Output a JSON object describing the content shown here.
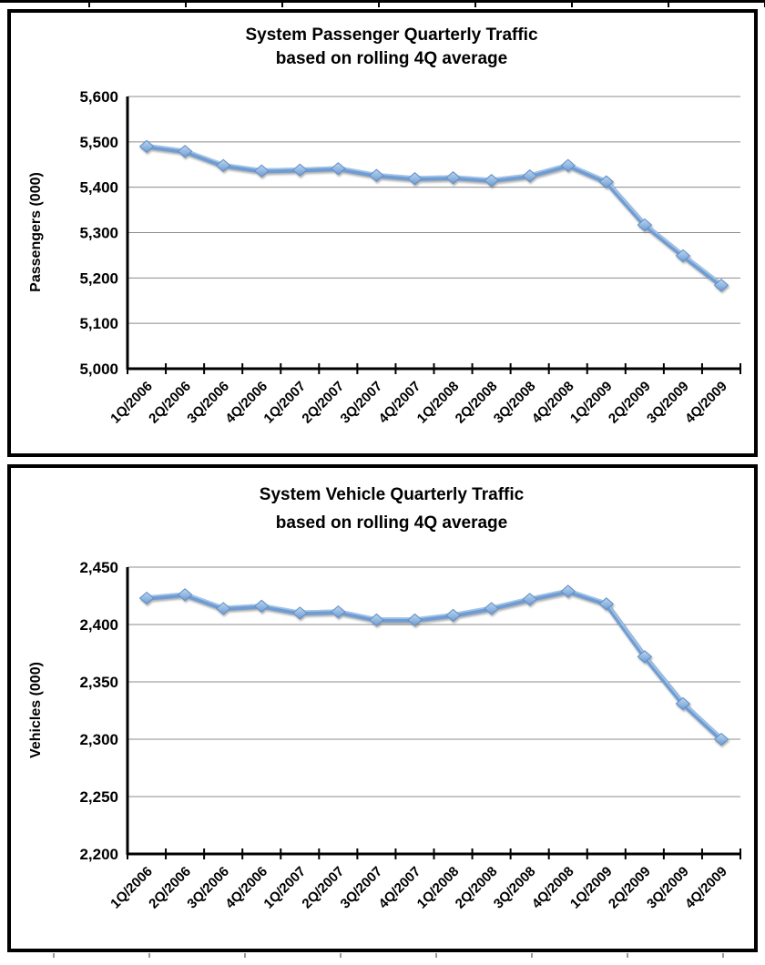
{
  "page": {
    "background": "#ffffff",
    "panel_border_color": "#000000"
  },
  "chart_data": [
    {
      "type": "line",
      "title": "System Passenger Quarterly Traffic",
      "subtitle": "based on rolling 4Q average",
      "ylabel": "Passengers (000)",
      "xlabel": "",
      "categories": [
        "1Q/2006",
        "2Q/2006",
        "3Q/2006",
        "4Q/2006",
        "1Q/2007",
        "2Q/2007",
        "3Q/2007",
        "4Q/2007",
        "1Q/2008",
        "2Q/2008",
        "3Q/2008",
        "4Q/2008",
        "1Q/2009",
        "2Q/2009",
        "3Q/2009",
        "4Q/2009"
      ],
      "series": [
        {
          "name": "Passengers",
          "values": [
            5490,
            5479,
            5448,
            5436,
            5438,
            5441,
            5426,
            5419,
            5421,
            5415,
            5425,
            5448,
            5412,
            5317,
            5249,
            5184
          ]
        }
      ],
      "ylim": [
        5000,
        5600
      ],
      "ytick_step": 100,
      "grid": true,
      "legend": "none",
      "line_color": "#6f9dd3",
      "line_highlight_color": "#a9c9ea",
      "marker": "diamond",
      "marker_fill_top": "#bcd6f2",
      "marker_fill_bottom": "#6e9cd2",
      "marker_stroke": "#5f8ec6",
      "grid_color": "#8c8c8c",
      "axis_color": "#000000"
    },
    {
      "type": "line",
      "title": "System Vehicle Quarterly Traffic",
      "subtitle": "based on rolling 4Q average",
      "ylabel": "Vehicles (000)",
      "xlabel": "",
      "categories": [
        "1Q/2006",
        "2Q/2006",
        "3Q/2006",
        "4Q/2006",
        "1Q/2007",
        "2Q/2007",
        "3Q/2007",
        "4Q/2007",
        "1Q/2008",
        "2Q/2008",
        "3Q/2008",
        "4Q/2008",
        "1Q/2009",
        "2Q/2009",
        "3Q/2009",
        "4Q/2009"
      ],
      "series": [
        {
          "name": "Vehicles",
          "values": [
            2423,
            2426,
            2414,
            2416,
            2410,
            2411,
            2404,
            2404,
            2408,
            2414,
            2422,
            2429,
            2418,
            2372,
            2331,
            2300
          ]
        }
      ],
      "ylim": [
        2200,
        2450
      ],
      "ytick_step": 50,
      "grid": true,
      "legend": "none",
      "line_color": "#6f9dd3",
      "line_highlight_color": "#a9c9ea",
      "marker": "diamond",
      "marker_fill_top": "#bcd6f2",
      "marker_fill_bottom": "#6e9cd2",
      "marker_stroke": "#5f8ec6",
      "grid_color": "#8c8c8c",
      "axis_color": "#000000"
    }
  ]
}
